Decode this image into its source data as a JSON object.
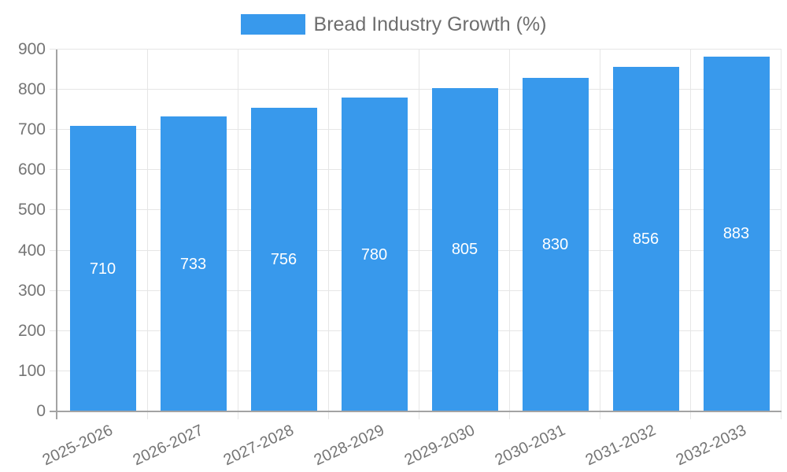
{
  "chart_data": {
    "type": "bar",
    "title": "",
    "categories": [
      "2025-2026",
      "2026-2027",
      "2027-2028",
      "2028-2029",
      "2029-2030",
      "2030-2031",
      "2031-2032",
      "2032-2033"
    ],
    "series": [
      {
        "name": "Bread Industry Growth (%)",
        "values": [
          710,
          733,
          756,
          780,
          805,
          830,
          856,
          883
        ]
      }
    ],
    "xlabel": "",
    "ylabel": "",
    "ylim": [
      0,
      900
    ],
    "y_ticks": [
      0,
      100,
      200,
      300,
      400,
      500,
      600,
      700,
      800,
      900
    ],
    "grid": true,
    "legend_position": "top",
    "x_tick_rotation_deg": -25,
    "colors": {
      "bar": "#3899EC",
      "value_label": "#FFFFFF",
      "gridline": "#E6E6E6",
      "axis_line": "#A3A3A3",
      "tick_label": "#757575",
      "legend_text": "#6E6E6E",
      "background": "#FFFFFF"
    }
  }
}
